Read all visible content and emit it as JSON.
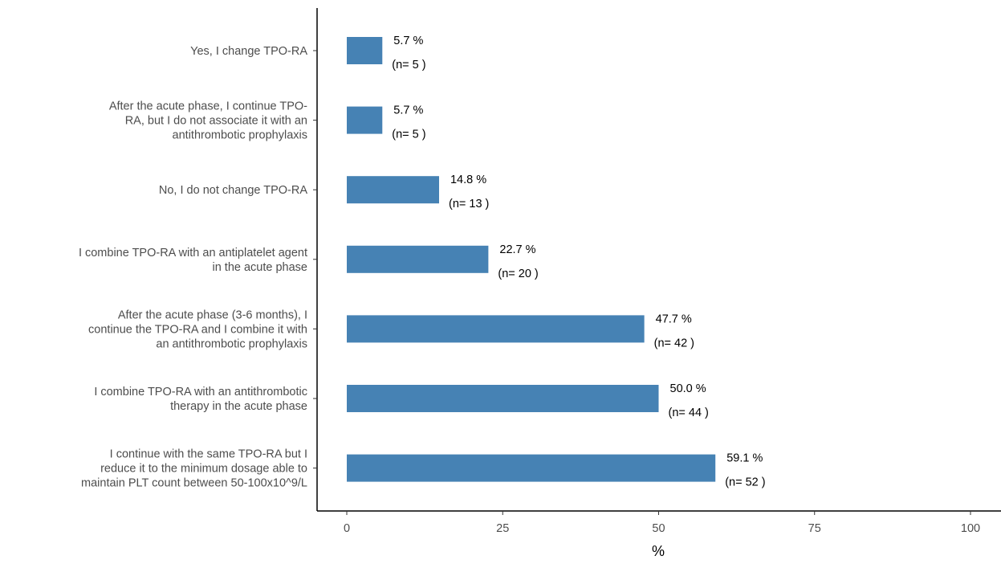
{
  "chart_data": {
    "type": "bar",
    "orientation": "horizontal",
    "xlabel": "%",
    "ylabel": "",
    "xlim": [
      0,
      100
    ],
    "xticks": [
      0,
      25,
      50,
      75,
      100
    ],
    "grid": false,
    "legend": "none",
    "bar_color": "#4682B4",
    "categories": [
      "Yes, I change TPO-RA",
      "After the acute phase, I continue TPO-RA, but I do not associate it with an antithrombotic prophylaxis",
      "No, I do not change TPO-RA",
      "I combine TPO-RA with an antiplatelet agent in the acute phase",
      "After the acute phase (3-6 months), I continue the TPO-RA and I combine it with an antithrombotic prophylaxis",
      "I combine TPO-RA with an antithrombotic therapy in the acute phase",
      "I continue with the same TPO-RA but I reduce it to the minimum dosage able to maintain PLT count between 50-100x10^9/L"
    ],
    "category_lines": [
      [
        "Yes, I change TPO-RA"
      ],
      [
        "After the acute phase, I continue TPO-",
        "RA, but I do not associate it with an",
        "antithrombotic prophylaxis"
      ],
      [
        "No, I do not change TPO-RA"
      ],
      [
        "I combine TPO-RA with an antiplatelet agent",
        "in the acute phase"
      ],
      [
        "After the acute phase (3-6 months), I",
        "continue the TPO-RA and I combine it with",
        "an antithrombotic prophylaxis"
      ],
      [
        "I combine TPO-RA with an antithrombotic",
        "therapy in the acute phase"
      ],
      [
        "I continue with the same TPO-RA but I",
        "reduce it to the minimum dosage able to",
        "maintain PLT count between 50-100x10^9/L"
      ]
    ],
    "values": [
      5.7,
      5.7,
      14.8,
      22.7,
      47.7,
      50.0,
      59.1
    ],
    "pct_labels": [
      "5.7 %",
      "5.7 %",
      "14.8 %",
      "22.7 %",
      "47.7 %",
      "50.0 %",
      "59.1 %"
    ],
    "n_labels": [
      "(n= 5 )",
      "(n= 5 )",
      "(n= 13 )",
      "(n= 20 )",
      "(n= 42 )",
      "(n= 44 )",
      "(n= 52 )"
    ]
  }
}
